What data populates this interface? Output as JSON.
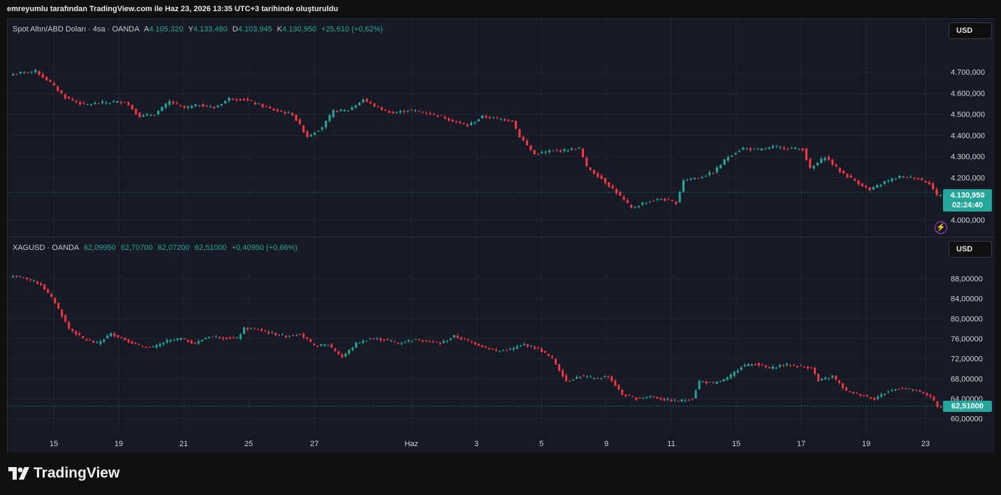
{
  "caption": "emreyumlu tarafından TradingView.com ile Haz 23, 2026 13:35 UTC+3 tarihinde oluşturuldu",
  "brand": "TradingView",
  "colors": {
    "up": "#26a69a",
    "down": "#f23645",
    "background": "#161a25",
    "grid": "#232632"
  },
  "panes": [
    {
      "symbol": "Spot Altın/ABD Doları · 4sa · OANDA",
      "ohlc_labels": [
        "A",
        "Y",
        "D",
        "K"
      ],
      "ohlc_values": [
        "4.105,320",
        "4.133,480",
        "4.103,945",
        "4.130,950"
      ],
      "change": "+25,610 (+0,62%)",
      "currency_button": "USD",
      "last_price": "4.130,950",
      "countdown": "02:24:40",
      "y_ticks": [
        "4.700,000",
        "4.600,000",
        "4.500,000",
        "4.400,000",
        "4.300,000",
        "4.200,000",
        "4.000,000"
      ]
    },
    {
      "symbol": "XAGUSD · OANDA",
      "ohlc_values": [
        "62,09950",
        "62,70700",
        "62,07200",
        "62,51000"
      ],
      "change": "+0,40950 (+0,66%)",
      "currency_button": "USD",
      "last_price": "62,51000",
      "y_ticks": [
        "88,00000",
        "84,00000",
        "80,00000",
        "76,00000",
        "72,00000",
        "68,00000",
        "64,00000",
        "60,00000"
      ]
    }
  ],
  "x_ticks": [
    "15",
    "19",
    "21",
    "25",
    "27",
    "Haz",
    "3",
    "5",
    "9",
    "11",
    "15",
    "17",
    "19",
    "23"
  ],
  "chart_data": [
    {
      "type": "candlestick",
      "title": "Spot Altın/ABD Doları · 4sa · OANDA",
      "unit": "USD",
      "ylim": [
        3970,
        4780
      ],
      "last": 4130.95,
      "x": [
        "15",
        "19",
        "21",
        "25",
        "27",
        "Haz",
        "3",
        "5",
        "9",
        "11",
        "15",
        "17",
        "19",
        "23"
      ],
      "close_anchors": [
        [
          0,
          4690
        ],
        [
          6,
          4705
        ],
        [
          10,
          4650
        ],
        [
          14,
          4580
        ],
        [
          19,
          4545
        ],
        [
          24,
          4555
        ],
        [
          30,
          4560
        ],
        [
          34,
          4490
        ],
        [
          38,
          4500
        ],
        [
          42,
          4560
        ],
        [
          46,
          4530
        ],
        [
          50,
          4545
        ],
        [
          54,
          4530
        ],
        [
          58,
          4575
        ],
        [
          62,
          4570
        ],
        [
          66,
          4545
        ],
        [
          70,
          4520
        ],
        [
          75,
          4500
        ],
        [
          79,
          4395
        ],
        [
          83,
          4440
        ],
        [
          86,
          4515
        ],
        [
          90,
          4520
        ],
        [
          94,
          4570
        ],
        [
          98,
          4530
        ],
        [
          102,
          4505
        ],
        [
          106,
          4520
        ],
        [
          110,
          4510
        ],
        [
          114,
          4495
        ],
        [
          118,
          4470
        ],
        [
          122,
          4445
        ],
        [
          126,
          4490
        ],
        [
          130,
          4480
        ],
        [
          134,
          4470
        ],
        [
          136,
          4395
        ],
        [
          140,
          4310
        ],
        [
          144,
          4325
        ],
        [
          148,
          4330
        ],
        [
          152,
          4340
        ],
        [
          154,
          4250
        ],
        [
          158,
          4195
        ],
        [
          162,
          4130
        ],
        [
          166,
          4055
        ],
        [
          170,
          4085
        ],
        [
          174,
          4100
        ],
        [
          178,
          4080
        ],
        [
          180,
          4190
        ],
        [
          184,
          4200
        ],
        [
          188,
          4225
        ],
        [
          192,
          4300
        ],
        [
          196,
          4340
        ],
        [
          200,
          4330
        ],
        [
          204,
          4345
        ],
        [
          208,
          4340
        ],
        [
          212,
          4335
        ],
        [
          214,
          4240
        ],
        [
          218,
          4300
        ],
        [
          222,
          4230
        ],
        [
          226,
          4185
        ],
        [
          230,
          4140
        ],
        [
          234,
          4180
        ],
        [
          238,
          4205
        ],
        [
          242,
          4200
        ],
        [
          246,
          4175
        ],
        [
          248,
          4115
        ],
        [
          250,
          4131
        ]
      ]
    },
    {
      "type": "candlestick",
      "title": "XAGUSD · OANDA",
      "unit": "USD",
      "ylim": [
        58,
        90.5
      ],
      "last": 62.51,
      "x": [
        "15",
        "19",
        "21",
        "25",
        "27",
        "Haz",
        "3",
        "5",
        "9",
        "11",
        "15",
        "17",
        "19",
        "23"
      ],
      "close_anchors": [
        [
          0,
          88.5
        ],
        [
          4,
          88.0
        ],
        [
          8,
          86.8
        ],
        [
          12,
          83.2
        ],
        [
          16,
          78.0
        ],
        [
          20,
          76.0
        ],
        [
          24,
          75.0
        ],
        [
          28,
          77.0
        ],
        [
          32,
          75.8
        ],
        [
          36,
          74.5
        ],
        [
          40,
          74.2
        ],
        [
          44,
          75.5
        ],
        [
          48,
          76.0
        ],
        [
          52,
          75.0
        ],
        [
          56,
          76.5
        ],
        [
          60,
          76.2
        ],
        [
          64,
          76.0
        ],
        [
          66,
          78.0
        ],
        [
          70,
          77.8
        ],
        [
          74,
          77.0
        ],
        [
          78,
          76.5
        ],
        [
          82,
          77.0
        ],
        [
          86,
          74.5
        ],
        [
          90,
          74.8
        ],
        [
          94,
          72.3
        ],
        [
          98,
          75.0
        ],
        [
          102,
          76.0
        ],
        [
          106,
          75.8
        ],
        [
          110,
          75.0
        ],
        [
          114,
          75.8
        ],
        [
          118,
          75.6
        ],
        [
          122,
          75.0
        ],
        [
          126,
          76.5
        ],
        [
          130,
          75.5
        ],
        [
          134,
          74.5
        ],
        [
          138,
          73.5
        ],
        [
          142,
          73.8
        ],
        [
          146,
          74.8
        ],
        [
          150,
          74.0
        ],
        [
          154,
          72.0
        ],
        [
          158,
          67.5
        ],
        [
          162,
          68.5
        ],
        [
          166,
          68.0
        ],
        [
          170,
          68.5
        ],
        [
          174,
          64.8
        ],
        [
          178,
          64.0
        ],
        [
          182,
          64.5
        ],
        [
          186,
          63.8
        ],
        [
          190,
          63.5
        ],
        [
          194,
          64.0
        ],
        [
          196,
          67.5
        ],
        [
          200,
          67.0
        ],
        [
          204,
          68.0
        ],
        [
          208,
          70.5
        ],
        [
          212,
          71.0
        ],
        [
          216,
          70.0
        ],
        [
          220,
          70.8
        ],
        [
          224,
          70.5
        ],
        [
          228,
          70.2
        ],
        [
          230,
          67.5
        ],
        [
          234,
          68.5
        ],
        [
          238,
          65.5
        ],
        [
          242,
          64.8
        ],
        [
          246,
          64.0
        ],
        [
          250,
          65.5
        ],
        [
          254,
          66.2
        ],
        [
          258,
          65.5
        ],
        [
          262,
          64.5
        ],
        [
          264,
          62.3
        ],
        [
          266,
          62.51
        ]
      ]
    }
  ]
}
